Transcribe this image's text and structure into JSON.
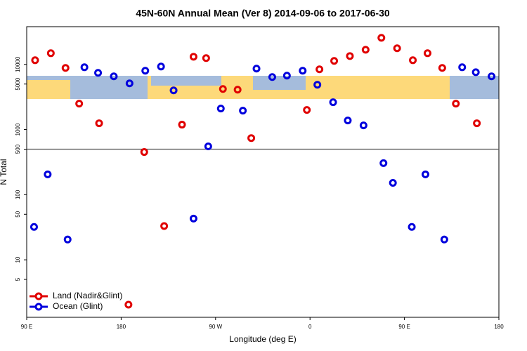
{
  "chart_data": {
    "type": "scatter",
    "title": "45N-60N Annual Mean (Ver 8)   2014-09-06 to 2017-06-30",
    "x_label": "Longitude (deg E)",
    "y_label": "N Total",
    "xlim": [
      90,
      540
    ],
    "xticks": [
      {
        "value": 90,
        "label": "90 E"
      },
      {
        "value": 180,
        "label": "180"
      },
      {
        "value": 270,
        "label": "90 W"
      },
      {
        "value": 360,
        "label": "0"
      },
      {
        "value": 450,
        "label": "90 E"
      },
      {
        "value": 540,
        "label": "180"
      }
    ],
    "ylim": [
      1.31,
      38000
    ],
    "yticks": [
      5,
      10,
      50,
      100,
      500,
      1000,
      5000,
      10000
    ],
    "y_log": true,
    "hline": 500,
    "legend": "bottom-left",
    "series": [
      {
        "name": "Land (Nadir&Glint)",
        "color": "#e00000",
        "x": [
          98,
          113,
          127,
          140,
          159,
          202,
          221,
          238,
          249,
          261,
          277,
          291,
          304,
          357,
          369,
          383,
          398,
          413,
          428,
          443,
          458,
          472,
          486,
          499,
          519,
          187
        ],
        "values": [
          11600,
          14870,
          8840,
          2500,
          1250,
          452,
          33,
          1190,
          13130,
          12500,
          4200,
          4100,
          740,
          2000,
          8410,
          11320,
          13460,
          16820,
          25600,
          17700,
          11600,
          14870,
          8840,
          2500,
          1250,
          2.05
        ]
      },
      {
        "name": "Ocean (Glint)",
        "color": "#0000dd",
        "x": [
          97,
          110,
          129,
          145,
          158,
          173,
          188,
          203,
          218,
          230,
          249,
          263,
          275,
          296,
          309,
          324,
          338,
          353,
          367,
          382,
          396,
          411,
          430,
          439,
          457,
          470,
          488,
          505,
          518,
          533
        ],
        "values": [
          32,
          205,
          20.5,
          9050,
          7430,
          6560,
          5120,
          8000,
          9280,
          4000,
          43,
          552,
          2100,
          1950,
          8620,
          6400,
          6730,
          8000,
          4880,
          2630,
          1380,
          1160,
          305,
          152,
          32,
          205,
          20.5,
          9050,
          7600,
          6560
        ]
      }
    ]
  }
}
